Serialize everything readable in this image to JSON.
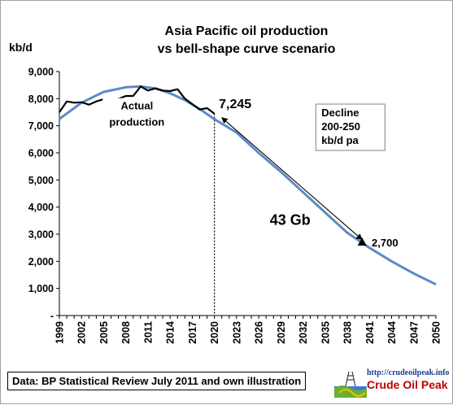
{
  "chart_data": {
    "type": "line",
    "title": "Asia Pacific oil production",
    "subtitle": "vs bell-shape curve scenario",
    "ylabel": "kb/d",
    "ylim": [
      0,
      9000
    ],
    "yticks": [
      "-",
      "1,000",
      "2,000",
      "3,000",
      "4,000",
      "5,000",
      "6,000",
      "7,000",
      "8,000",
      "9,000"
    ],
    "ytick_values": [
      0,
      1000,
      2000,
      3000,
      4000,
      5000,
      6000,
      7000,
      8000,
      9000
    ],
    "xlim": [
      1999,
      2050
    ],
    "xticks": [
      "1999",
      "2002",
      "2005",
      "2008",
      "2011",
      "2014",
      "2017",
      "2020",
      "2023",
      "2026",
      "2029",
      "2032",
      "2035",
      "2038",
      "2041",
      "2044",
      "2047",
      "2050"
    ],
    "xtick_values": [
      1999,
      2002,
      2005,
      2008,
      2011,
      2014,
      2017,
      2020,
      2023,
      2026,
      2029,
      2032,
      2035,
      2038,
      2041,
      2044,
      2047,
      2050
    ],
    "series": [
      {
        "name": "Actual production",
        "color": "#000000",
        "x": [
          1999,
          2000,
          2001,
          2002,
          2003,
          2004,
          2005,
          2006,
          2007,
          2008,
          2009,
          2010,
          2011,
          2012,
          2013,
          2014,
          2015,
          2016,
          2017,
          2018,
          2019,
          2020
        ],
        "values": [
          7500,
          7900,
          7850,
          7870,
          7780,
          7900,
          7980,
          7950,
          7990,
          8100,
          8100,
          8450,
          8300,
          8380,
          8300,
          8280,
          8350,
          8000,
          7800,
          7600,
          7650,
          7450
        ]
      },
      {
        "name": "bell-shape curve scenario",
        "color": "#5b8ac6",
        "x": [
          1999,
          2002,
          2005,
          2008,
          2010,
          2012,
          2014,
          2016,
          2018,
          2020,
          2023,
          2026,
          2029,
          2032,
          2035,
          2038,
          2041,
          2044,
          2047,
          2050
        ],
        "values": [
          7250,
          7850,
          8250,
          8420,
          8450,
          8380,
          8200,
          7950,
          7620,
          7245,
          6750,
          6000,
          5300,
          4550,
          3800,
          3050,
          2500,
          2000,
          1550,
          1150
        ]
      }
    ],
    "vline_x": 2020,
    "annotations": {
      "actual_line1": "Actual",
      "actual_line2": "production",
      "start_value": "7,245",
      "end_value": "2,700",
      "decline_line1": "Decline",
      "decline_line2": "200-250",
      "decline_line3": "kb/d pa",
      "cumulative": "43 Gb"
    },
    "arrow": {
      "x1": 2021,
      "y1": 7300,
      "x2": 2040,
      "y2": 2800
    },
    "marker": {
      "x": 2040,
      "y": 2700
    },
    "grid": false,
    "legend": "none"
  },
  "footnote": "Data: BP Statistical Review July 2011 and own illustration",
  "logo": {
    "url": "http://crudeoilpeak.info",
    "name": "Crude Oil Peak"
  }
}
